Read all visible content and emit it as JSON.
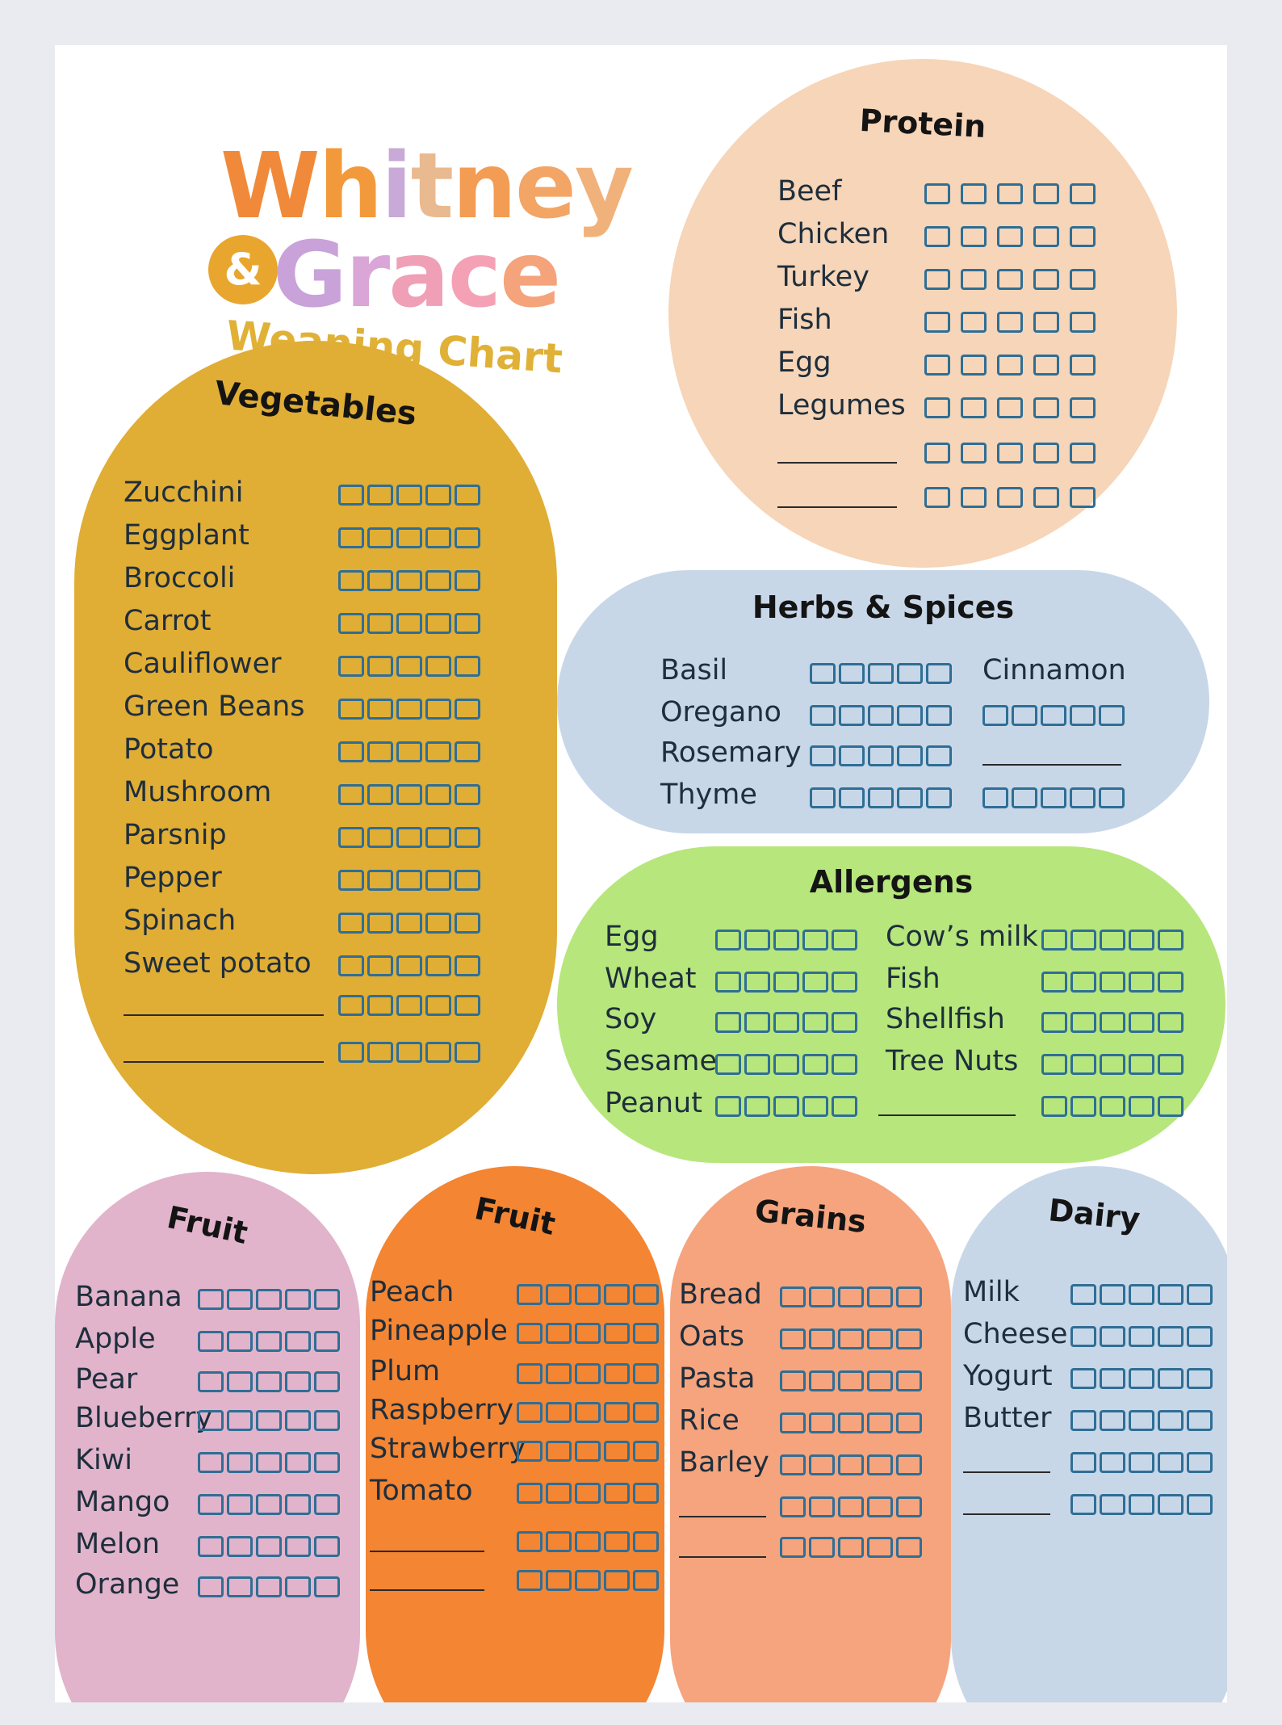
{
  "brand": {
    "line1_letters": [
      "W",
      "h",
      "i",
      "t",
      "n",
      "e",
      "y"
    ],
    "line1_colors": [
      "#f08a3a",
      "#f29a3b",
      "#c8a9d7",
      "#e9b98f",
      "#f39c53",
      "#f2a565",
      "#f0b27a"
    ],
    "line2_letters": [
      "G",
      "r",
      "a",
      "c",
      "e"
    ],
    "line2_colors": [
      "#c8a2d8",
      "#d9a6d7",
      "#ef9fb6",
      "#f5a1b5",
      "#f4a37a"
    ],
    "ampersand": "&",
    "subtitle": "Weaning Chart"
  },
  "colors": {
    "checkbox": "#2f6e95",
    "vegetables": "#e0ad35",
    "protein": "#f6d5b8",
    "herbs": "#c8d7e8",
    "allergens": "#b7e67c",
    "fruit1": "#e1b4cb",
    "fruit2": "#f38533",
    "grains": "#f6a47e",
    "dairy": "#c8d7e8"
  },
  "sections": {
    "vegetables": {
      "title": "Vegetables",
      "items": [
        "Zucchini",
        "Eggplant",
        "Broccoli",
        "Carrot",
        "Cauliflower",
        "Green Beans",
        "Potato",
        "Mushroom",
        "Parsnip",
        "Pepper",
        "Spinach",
        "Sweet potato",
        "",
        ""
      ]
    },
    "protein": {
      "title": "Protein",
      "items": [
        "Beef",
        "Chicken",
        "Turkey",
        "Fish",
        "Egg",
        "Legumes",
        "",
        ""
      ]
    },
    "herbs": {
      "title": "Herbs & Spices",
      "left": [
        "Basil",
        "Oregano",
        "Rosemary",
        "Thyme"
      ],
      "right": [
        "Cinnamon",
        "",
        "",
        ""
      ]
    },
    "allergens": {
      "title": "Allergens",
      "left": [
        "Egg",
        "Wheat",
        "Soy",
        "Sesame",
        "Peanut"
      ],
      "right": [
        "Cow’s milk",
        "Fish",
        "Shellfish",
        "Tree Nuts",
        ""
      ]
    },
    "fruit1": {
      "title": "Fruit",
      "items": [
        "Banana",
        "Apple",
        "Pear",
        "Blueberry",
        "Kiwi",
        "Mango",
        "Melon",
        "Orange"
      ]
    },
    "fruit2": {
      "title": "Fruit",
      "items": [
        "Peach",
        "Pineapple",
        "Plum",
        "Raspberry",
        "Strawberry",
        "Tomato",
        "",
        ""
      ]
    },
    "grains": {
      "title": "Grains",
      "items": [
        "Bread",
        "Oats",
        "Pasta",
        "Rice",
        "Barley",
        "",
        ""
      ]
    },
    "dairy": {
      "title": "Dairy",
      "items": [
        "Milk",
        "Cheese",
        "Yogurt",
        "Butter",
        "",
        ""
      ]
    }
  }
}
